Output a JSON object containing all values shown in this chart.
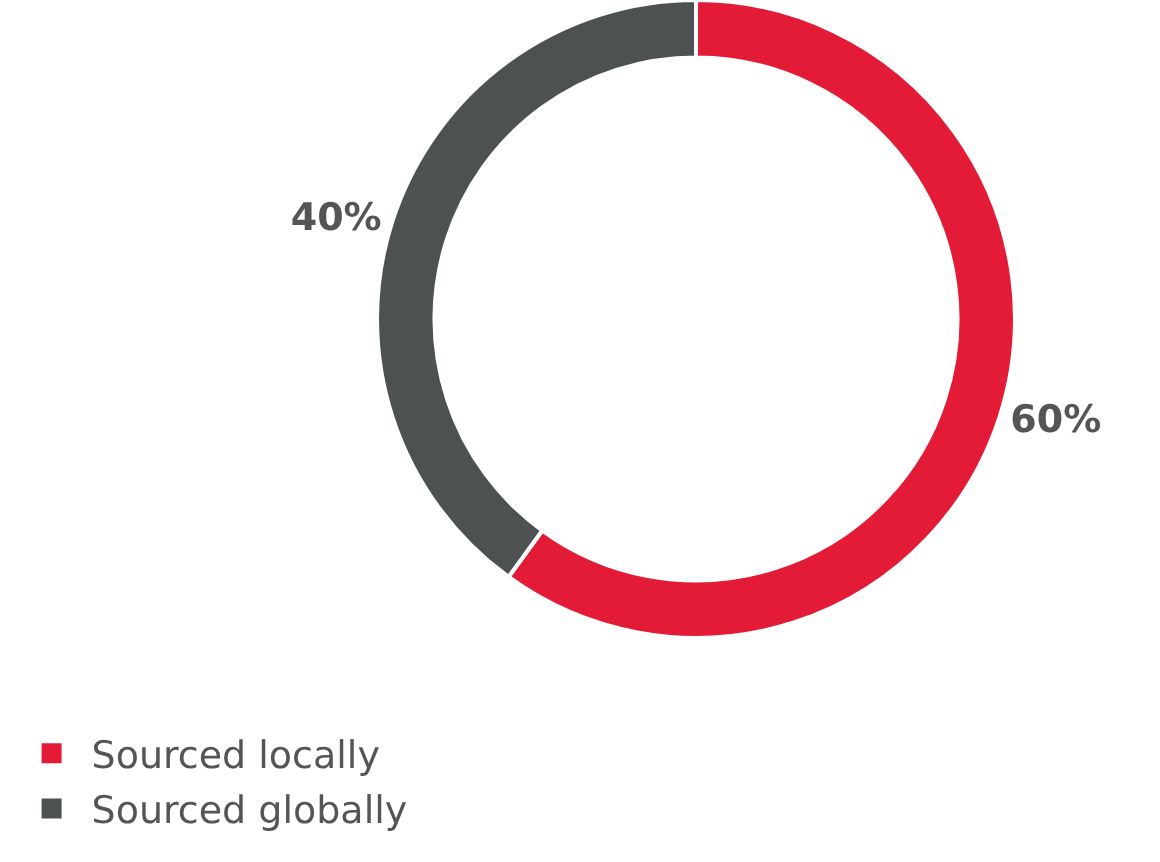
{
  "chart_data": {
    "type": "donut",
    "categories": [
      "Sourced locally",
      "Sourced globally"
    ],
    "values": [
      60,
      40
    ],
    "colors": [
      "#e31b37",
      "#4d5152"
    ],
    "value_labels": [
      "60%",
      "40%"
    ],
    "legend": "bottom left"
  }
}
